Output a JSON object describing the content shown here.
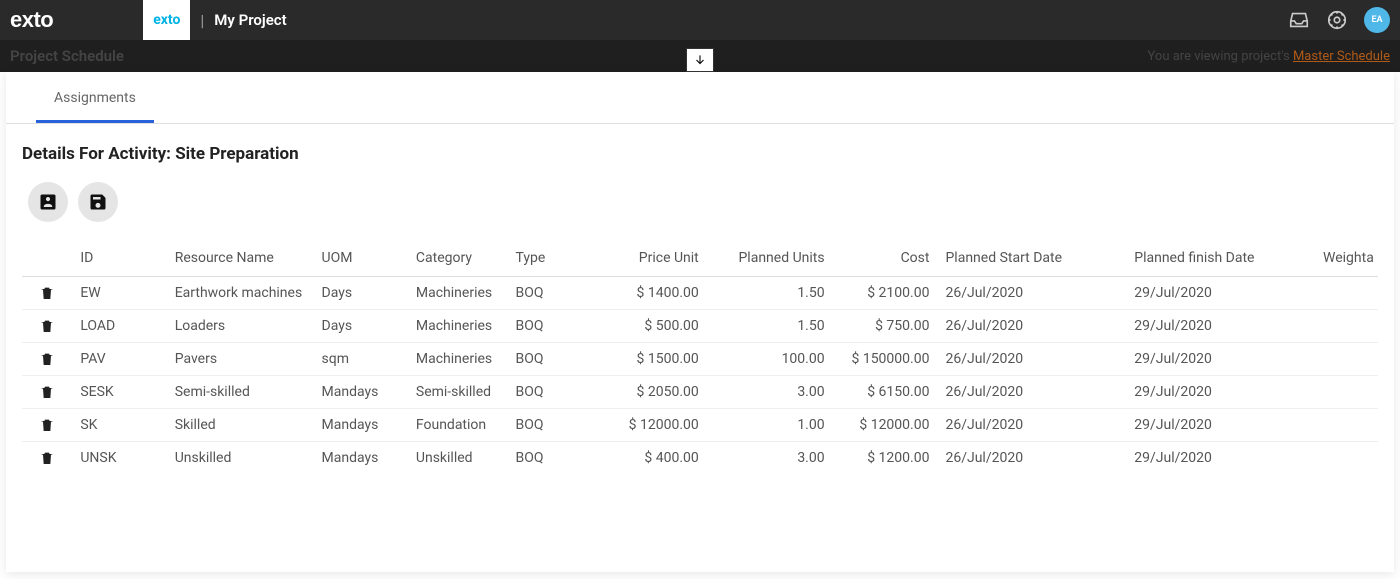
{
  "topbar": {
    "logo_text": "exto",
    "tab_logo_text": "exto",
    "project_name": "My Project",
    "avatar_initials": "EA"
  },
  "subheader": {
    "title": "Project Schedule",
    "viewing_prefix": "You are viewing project's ",
    "viewing_link": "Master Schedule"
  },
  "panel": {
    "tab_label": "Assignments",
    "details_prefix": "Details For Activity: ",
    "activity_name": "Site Preparation"
  },
  "table": {
    "headers": {
      "id": "ID",
      "resource_name": "Resource Name",
      "uom": "UOM",
      "category": "Category",
      "type": "Type",
      "price_unit": "Price Unit",
      "planned_units": "Planned Units",
      "cost": "Cost",
      "planned_start": "Planned Start Date",
      "planned_finish": "Planned finish Date",
      "weightage": "Weighta"
    },
    "rows": [
      {
        "id": "EW",
        "name": "Earthwork machines",
        "uom": "Days",
        "category": "Machineries",
        "type": "BOQ",
        "price_unit": "$ 1400.00",
        "planned_units": "1.50",
        "cost": "$ 2100.00",
        "start": "26/Jul/2020",
        "finish": "29/Jul/2020"
      },
      {
        "id": "LOAD",
        "name": "Loaders",
        "uom": "Days",
        "category": "Machineries",
        "type": "BOQ",
        "price_unit": "$ 500.00",
        "planned_units": "1.50",
        "cost": "$ 750.00",
        "start": "26/Jul/2020",
        "finish": "29/Jul/2020"
      },
      {
        "id": "PAV",
        "name": "Pavers",
        "uom": "sqm",
        "category": "Machineries",
        "type": "BOQ",
        "price_unit": "$ 1500.00",
        "planned_units": "100.00",
        "cost": "$ 150000.00",
        "start": "26/Jul/2020",
        "finish": "29/Jul/2020"
      },
      {
        "id": "SESK",
        "name": "Semi-skilled",
        "uom": "Mandays",
        "category": "Semi-skilled",
        "type": "BOQ",
        "price_unit": "$ 2050.00",
        "planned_units": "3.00",
        "cost": "$ 6150.00",
        "start": "26/Jul/2020",
        "finish": "29/Jul/2020"
      },
      {
        "id": "SK",
        "name": "Skilled",
        "uom": "Mandays",
        "category": "Foundation",
        "type": "BOQ",
        "price_unit": "$ 12000.00",
        "planned_units": "1.00",
        "cost": "$ 12000.00",
        "start": "26/Jul/2020",
        "finish": "29/Jul/2020"
      },
      {
        "id": "UNSK",
        "name": "Unskilled",
        "uom": "Mandays",
        "category": "Unskilled",
        "type": "BOQ",
        "price_unit": "$ 400.00",
        "planned_units": "3.00",
        "cost": "$ 1200.00",
        "start": "26/Jul/2020",
        "finish": "29/Jul/2020"
      }
    ]
  }
}
